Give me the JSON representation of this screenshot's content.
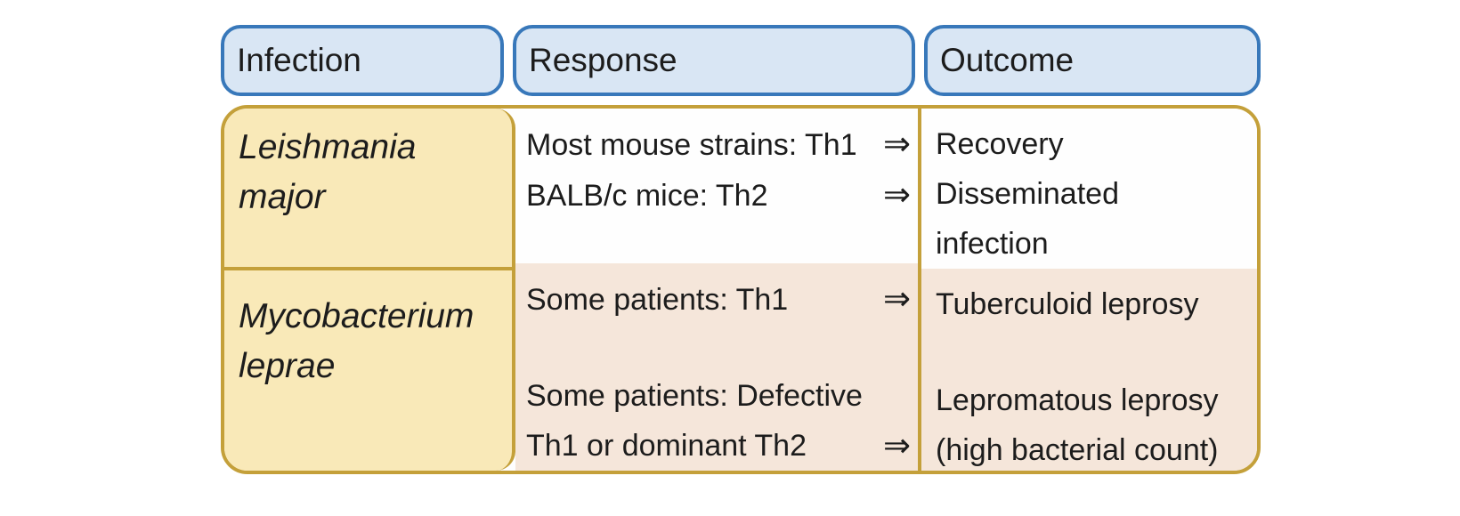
{
  "figure": {
    "headers": {
      "infection": "Infection",
      "response": "Response",
      "outcome": "Outcome"
    },
    "arrow": "⇒",
    "colors": {
      "header_fill": "#d9e6f4",
      "header_border": "#3878ba",
      "gold_border": "#c4a03a",
      "infection_fill": "#f9e9b8",
      "row1_fill": "#fefefe",
      "row2_fill": "#f5e6da",
      "text": "#1c1c1c"
    },
    "rows": [
      {
        "infection_lines": [
          "Leishmania",
          "major"
        ],
        "entries": [
          {
            "response_lines": [
              "Most mouse strains: Th1"
            ],
            "outcome_lines": [
              "Recovery"
            ]
          },
          {
            "response_lines": [
              "BALB/c mice: Th2"
            ],
            "outcome_lines": [
              "Disseminated",
              "infection"
            ]
          }
        ]
      },
      {
        "infection_lines": [
          "Mycobacterium",
          "leprae"
        ],
        "entries": [
          {
            "response_lines": [
              "Some patients: Th1"
            ],
            "outcome_lines": [
              "Tuberculoid leprosy"
            ]
          },
          {
            "response_lines": [
              "Some patients: Defective",
              "Th1 or dominant Th2"
            ],
            "outcome_lines": [
              "Lepromatous leprosy",
              "(high bacterial count)"
            ]
          }
        ]
      }
    ]
  }
}
